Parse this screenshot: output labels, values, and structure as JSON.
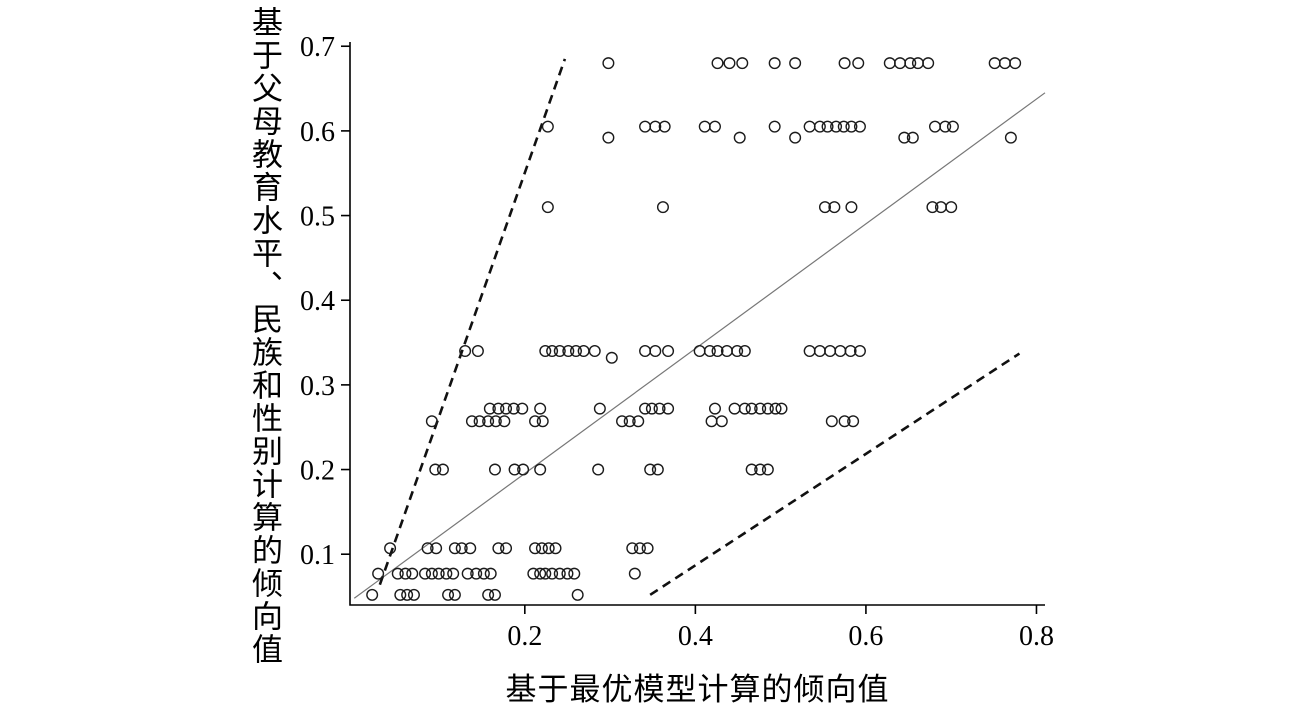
{
  "chart_data": {
    "type": "scatter",
    "title": "",
    "xlabel": "基于最优模型计算的倾向值",
    "ylabel": "基于父母教育水平、民族和性别计算的倾向值",
    "xlim": [
      -0.005,
      0.81
    ],
    "ylim": [
      0.04,
      0.705
    ],
    "grid": false,
    "legend": "none",
    "marker": "open-circle",
    "x_ticks": [
      {
        "value": 0.2,
        "label": "0.2"
      },
      {
        "value": 0.4,
        "label": "0.4"
      },
      {
        "value": 0.6,
        "label": "0.6"
      },
      {
        "value": 0.8,
        "label": "0.8"
      }
    ],
    "y_ticks": [
      {
        "value": 0.1,
        "label": "0.1"
      },
      {
        "value": 0.2,
        "label": "0.2"
      },
      {
        "value": 0.3,
        "label": "0.3"
      },
      {
        "value": 0.4,
        "label": "0.4"
      },
      {
        "value": 0.5,
        "label": "0.5"
      },
      {
        "value": 0.6,
        "label": "0.6"
      },
      {
        "value": 0.7,
        "label": "0.7"
      }
    ],
    "lines": [
      {
        "name": "diagonal-reference-line",
        "style": "solid",
        "color": "#777777",
        "x1": 0.0,
        "y1": 0.048,
        "x2": 0.81,
        "y2": 0.645
      },
      {
        "name": "upper-dashed-boundary-line",
        "style": "dashed",
        "color": "#111111",
        "x1": 0.03,
        "y1": 0.064,
        "x2": 0.247,
        "y2": 0.685
      },
      {
        "name": "lower-dashed-boundary-line",
        "style": "dashed",
        "color": "#111111",
        "x1": 0.347,
        "y1": 0.052,
        "x2": 0.78,
        "y2": 0.337
      }
    ],
    "points": [
      [
        0.298,
        0.68
      ],
      [
        0.426,
        0.68
      ],
      [
        0.44,
        0.68
      ],
      [
        0.455,
        0.68
      ],
      [
        0.493,
        0.68
      ],
      [
        0.517,
        0.68
      ],
      [
        0.575,
        0.68
      ],
      [
        0.591,
        0.68
      ],
      [
        0.628,
        0.68
      ],
      [
        0.64,
        0.68
      ],
      [
        0.652,
        0.68
      ],
      [
        0.661,
        0.68
      ],
      [
        0.673,
        0.68
      ],
      [
        0.751,
        0.68
      ],
      [
        0.763,
        0.68
      ],
      [
        0.775,
        0.68
      ],
      [
        0.227,
        0.605
      ],
      [
        0.341,
        0.605
      ],
      [
        0.353,
        0.605
      ],
      [
        0.364,
        0.605
      ],
      [
        0.411,
        0.605
      ],
      [
        0.423,
        0.605
      ],
      [
        0.493,
        0.605
      ],
      [
        0.534,
        0.605
      ],
      [
        0.546,
        0.605
      ],
      [
        0.555,
        0.605
      ],
      [
        0.565,
        0.605
      ],
      [
        0.574,
        0.605
      ],
      [
        0.583,
        0.605
      ],
      [
        0.593,
        0.605
      ],
      [
        0.681,
        0.605
      ],
      [
        0.693,
        0.605
      ],
      [
        0.702,
        0.605
      ],
      [
        0.298,
        0.592
      ],
      [
        0.452,
        0.592
      ],
      [
        0.517,
        0.592
      ],
      [
        0.645,
        0.592
      ],
      [
        0.655,
        0.592
      ],
      [
        0.77,
        0.592
      ],
      [
        0.227,
        0.51
      ],
      [
        0.362,
        0.51
      ],
      [
        0.552,
        0.51
      ],
      [
        0.563,
        0.51
      ],
      [
        0.583,
        0.51
      ],
      [
        0.678,
        0.51
      ],
      [
        0.688,
        0.51
      ],
      [
        0.7,
        0.51
      ],
      [
        0.13,
        0.34
      ],
      [
        0.145,
        0.34
      ],
      [
        0.224,
        0.34
      ],
      [
        0.232,
        0.34
      ],
      [
        0.241,
        0.34
      ],
      [
        0.251,
        0.34
      ],
      [
        0.26,
        0.34
      ],
      [
        0.269,
        0.34
      ],
      [
        0.282,
        0.34
      ],
      [
        0.341,
        0.34
      ],
      [
        0.353,
        0.34
      ],
      [
        0.368,
        0.34
      ],
      [
        0.405,
        0.34
      ],
      [
        0.417,
        0.34
      ],
      [
        0.426,
        0.34
      ],
      [
        0.437,
        0.34
      ],
      [
        0.449,
        0.34
      ],
      [
        0.458,
        0.34
      ],
      [
        0.534,
        0.34
      ],
      [
        0.546,
        0.34
      ],
      [
        0.558,
        0.34
      ],
      [
        0.57,
        0.34
      ],
      [
        0.582,
        0.34
      ],
      [
        0.593,
        0.34
      ],
      [
        0.302,
        0.332
      ],
      [
        0.159,
        0.272
      ],
      [
        0.169,
        0.272
      ],
      [
        0.178,
        0.272
      ],
      [
        0.187,
        0.272
      ],
      [
        0.197,
        0.272
      ],
      [
        0.218,
        0.272
      ],
      [
        0.288,
        0.272
      ],
      [
        0.341,
        0.272
      ],
      [
        0.349,
        0.272
      ],
      [
        0.358,
        0.272
      ],
      [
        0.368,
        0.272
      ],
      [
        0.423,
        0.272
      ],
      [
        0.446,
        0.272
      ],
      [
        0.458,
        0.272
      ],
      [
        0.466,
        0.272
      ],
      [
        0.476,
        0.272
      ],
      [
        0.485,
        0.272
      ],
      [
        0.494,
        0.272
      ],
      [
        0.501,
        0.272
      ],
      [
        0.091,
        0.257
      ],
      [
        0.138,
        0.257
      ],
      [
        0.147,
        0.257
      ],
      [
        0.157,
        0.257
      ],
      [
        0.166,
        0.257
      ],
      [
        0.176,
        0.257
      ],
      [
        0.212,
        0.257
      ],
      [
        0.221,
        0.257
      ],
      [
        0.314,
        0.257
      ],
      [
        0.323,
        0.257
      ],
      [
        0.333,
        0.257
      ],
      [
        0.419,
        0.257
      ],
      [
        0.431,
        0.257
      ],
      [
        0.56,
        0.257
      ],
      [
        0.575,
        0.257
      ],
      [
        0.585,
        0.257
      ],
      [
        0.095,
        0.2
      ],
      [
        0.104,
        0.2
      ],
      [
        0.165,
        0.2
      ],
      [
        0.188,
        0.2
      ],
      [
        0.198,
        0.2
      ],
      [
        0.218,
        0.2
      ],
      [
        0.286,
        0.2
      ],
      [
        0.347,
        0.2
      ],
      [
        0.356,
        0.2
      ],
      [
        0.466,
        0.2
      ],
      [
        0.476,
        0.2
      ],
      [
        0.485,
        0.2
      ],
      [
        0.042,
        0.107
      ],
      [
        0.086,
        0.107
      ],
      [
        0.096,
        0.107
      ],
      [
        0.118,
        0.107
      ],
      [
        0.126,
        0.107
      ],
      [
        0.136,
        0.107
      ],
      [
        0.169,
        0.107
      ],
      [
        0.178,
        0.107
      ],
      [
        0.212,
        0.107
      ],
      [
        0.22,
        0.107
      ],
      [
        0.228,
        0.107
      ],
      [
        0.236,
        0.107
      ],
      [
        0.326,
        0.107
      ],
      [
        0.335,
        0.107
      ],
      [
        0.344,
        0.107
      ],
      [
        0.028,
        0.077
      ],
      [
        0.051,
        0.077
      ],
      [
        0.06,
        0.077
      ],
      [
        0.068,
        0.077
      ],
      [
        0.083,
        0.077
      ],
      [
        0.091,
        0.077
      ],
      [
        0.099,
        0.077
      ],
      [
        0.108,
        0.077
      ],
      [
        0.116,
        0.077
      ],
      [
        0.133,
        0.077
      ],
      [
        0.143,
        0.077
      ],
      [
        0.152,
        0.077
      ],
      [
        0.16,
        0.077
      ],
      [
        0.21,
        0.077
      ],
      [
        0.218,
        0.077
      ],
      [
        0.224,
        0.077
      ],
      [
        0.232,
        0.077
      ],
      [
        0.241,
        0.077
      ],
      [
        0.25,
        0.077
      ],
      [
        0.258,
        0.077
      ],
      [
        0.329,
        0.077
      ],
      [
        0.021,
        0.052
      ],
      [
        0.054,
        0.052
      ],
      [
        0.062,
        0.052
      ],
      [
        0.07,
        0.052
      ],
      [
        0.11,
        0.052
      ],
      [
        0.118,
        0.052
      ],
      [
        0.157,
        0.052
      ],
      [
        0.165,
        0.052
      ],
      [
        0.262,
        0.052
      ]
    ]
  }
}
